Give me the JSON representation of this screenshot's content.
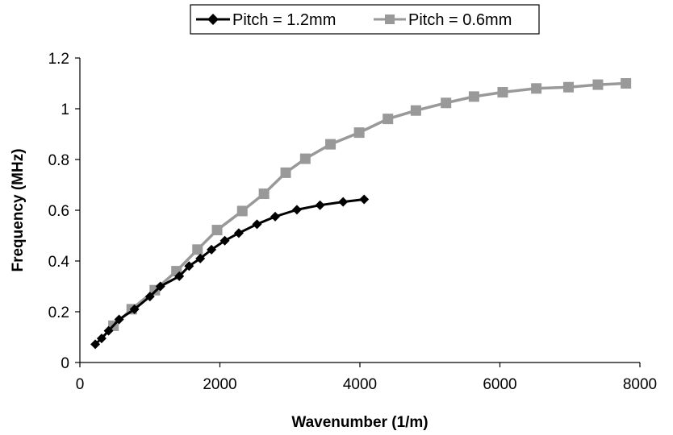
{
  "chart_data": {
    "type": "line",
    "title": "",
    "xlabel": "Wavenumber (1/m)",
    "ylabel": "Frequency (MHz)",
    "xlim": [
      0,
      8000
    ],
    "ylim": [
      0,
      1.2
    ],
    "x_ticks": [
      "0",
      "2000",
      "4000",
      "6000",
      "8000"
    ],
    "y_ticks": [
      "0",
      "0.2",
      "0.4",
      "0.6",
      "0.8",
      "1",
      "1.2"
    ],
    "grid": false,
    "legend_position": "top-center",
    "series": [
      {
        "name": "Pitch = 1.2mm",
        "color": "#000000",
        "marker": "diamond",
        "x": [
          220,
          310,
          410,
          560,
          780,
          1000,
          1150,
          1420,
          1560,
          1720,
          1880,
          2070,
          2270,
          2530,
          2790,
          3100,
          3430,
          3760,
          4060
        ],
        "y": [
          0.072,
          0.095,
          0.125,
          0.17,
          0.21,
          0.26,
          0.3,
          0.34,
          0.38,
          0.41,
          0.445,
          0.48,
          0.51,
          0.545,
          0.575,
          0.602,
          0.62,
          0.633,
          0.643
        ]
      },
      {
        "name": "Pitch = 0.6mm",
        "color": "#999999",
        "marker": "square",
        "x": [
          480,
          740,
          1070,
          1380,
          1680,
          1960,
          2320,
          2630,
          2940,
          3220,
          3580,
          3990,
          4400,
          4800,
          5230,
          5630,
          6040,
          6520,
          6980,
          7400,
          7800
        ],
        "y": [
          0.145,
          0.21,
          0.285,
          0.36,
          0.445,
          0.522,
          0.597,
          0.665,
          0.748,
          0.803,
          0.86,
          0.906,
          0.96,
          0.993,
          1.023,
          1.048,
          1.065,
          1.08,
          1.085,
          1.095,
          1.1
        ]
      }
    ]
  }
}
